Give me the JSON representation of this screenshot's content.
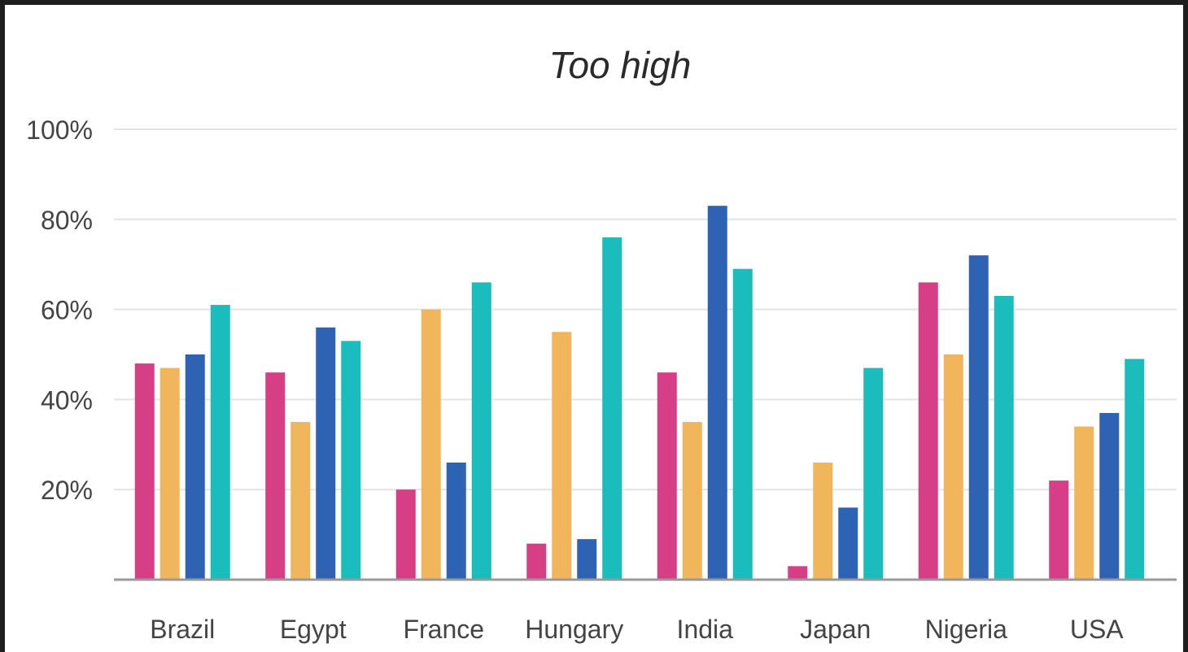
{
  "chart_data": {
    "type": "bar",
    "title": "Too high",
    "xlabel": "",
    "ylabel": "",
    "ylim": [
      0,
      100
    ],
    "yticks": [
      "20%",
      "40%",
      "60%",
      "80%",
      "100%"
    ],
    "ytick_values": [
      20,
      40,
      60,
      80,
      100
    ],
    "grid": true,
    "legend": "none",
    "categories": [
      "Brazil",
      "Egypt",
      "France",
      "Hungary",
      "India",
      "Japan",
      "Nigeria",
      "USA"
    ],
    "series": [
      {
        "color": "#d63f86",
        "values": [
          48,
          46,
          20,
          8,
          46,
          3,
          66,
          22
        ]
      },
      {
        "color": "#f1b55c",
        "values": [
          47,
          35,
          60,
          55,
          35,
          26,
          50,
          34
        ]
      },
      {
        "color": "#2e63b4",
        "values": [
          50,
          56,
          26,
          9,
          83,
          16,
          72,
          37
        ]
      },
      {
        "color": "#1bbcbc",
        "values": [
          61,
          53,
          66,
          76,
          69,
          47,
          63,
          49
        ]
      }
    ]
  }
}
